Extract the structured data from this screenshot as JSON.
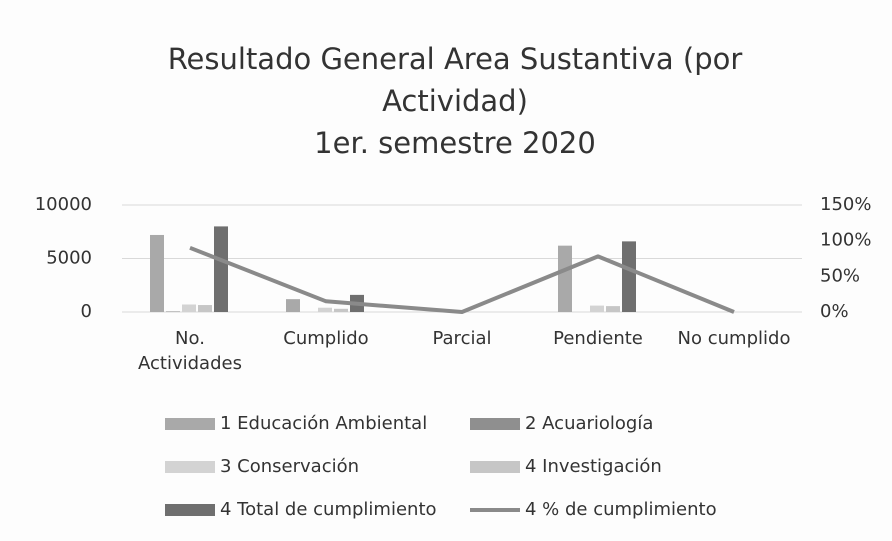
{
  "chart_data": {
    "type": "bar",
    "title": "Resultado General Area Sustantiva (por Actividad)",
    "subtitle": "1er. semestre 2020",
    "categories": [
      "No. Actividades",
      "Cumplido",
      "Parcial",
      "Pendiente",
      "No cumplido"
    ],
    "series": [
      {
        "name": "1  Educación Ambiental",
        "color": "#a9a9a9",
        "values": [
          7200,
          1200,
          0,
          6200,
          0
        ]
      },
      {
        "name": "2  Acuariología",
        "color": "#8f8f8f",
        "values": [
          50,
          0,
          0,
          0,
          0
        ]
      },
      {
        "name": "3  Conservación",
        "color": "#d3d3d3",
        "values": [
          700,
          400,
          0,
          600,
          0
        ]
      },
      {
        "name": "4  Investigación",
        "color": "#c6c6c6",
        "values": [
          650,
          300,
          0,
          550,
          0
        ]
      },
      {
        "name": "4 Total de cumplimiento",
        "color": "#6f6f6f",
        "values": [
          8000,
          1600,
          0,
          6600,
          0
        ]
      },
      {
        "name": "4 % de cumplimiento",
        "color": "#8a8a8a",
        "type": "line",
        "axis": "y2",
        "values": [
          90,
          15,
          0,
          78,
          0
        ]
      }
    ],
    "ylim": [
      0,
      10000
    ],
    "yticks": [
      0,
      5000,
      10000
    ],
    "y2lim": [
      0,
      150
    ],
    "y2ticks": [
      {
        "value": 0,
        "label": "0%"
      },
      {
        "value": 50,
        "label": "50%"
      },
      {
        "value": 100,
        "label": "100%"
      },
      {
        "value": 150,
        "label": "150%"
      }
    ],
    "grid": true
  }
}
